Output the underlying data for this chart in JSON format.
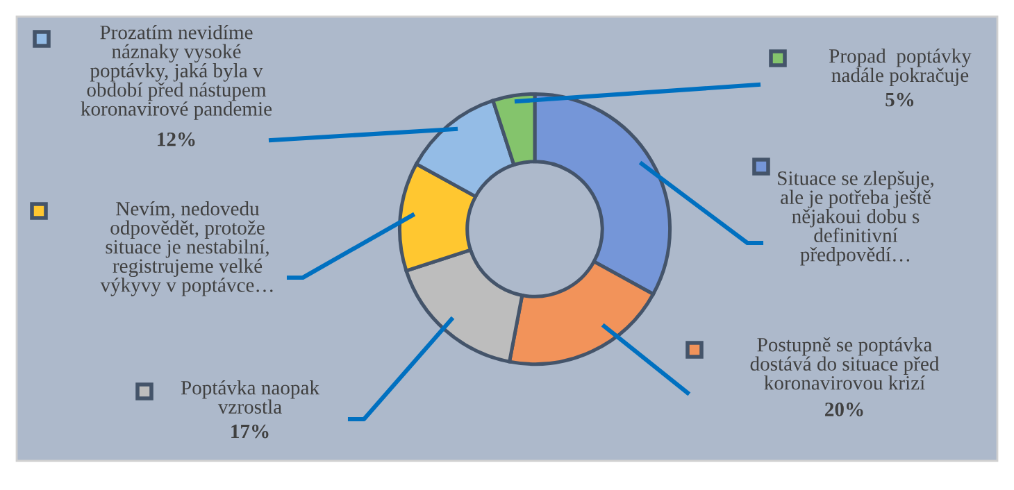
{
  "chart_data": {
    "type": "donut",
    "categories": [
      "Situace se zlepšuje,\nale je potřeba ještě\nnějakoui dobu s\ndefinitivní\npředpovědí…",
      "Postupně se poptávka\ndostává do situace před\nkoronavirovou krizí",
      "Poptávka naopak\nvzrostla",
      "Nevím, nedovedu\nodpovědět, protože\nsituace je nestabilní,\nregistrujeme velké\nvýkyvy v poptávce…",
      "Prozatím nevidíme\nnáznaky vysoké\npoptávky, jaká byla v\nobdobí před nástupem\nkoronavirové pandemie",
      "Propad  poptávky\nnadále pokračuje"
    ],
    "values": [
      33,
      20,
      17,
      13,
      12,
      5
    ],
    "value_labels": [
      null,
      "20%",
      "17%",
      null,
      "12%",
      "5%"
    ],
    "legend": "right",
    "colors": [
      "#7596d8",
      "#f2935a",
      "#bdbdbd",
      "#ffc730",
      "#94bce6",
      "#84c46c"
    ]
  }
}
